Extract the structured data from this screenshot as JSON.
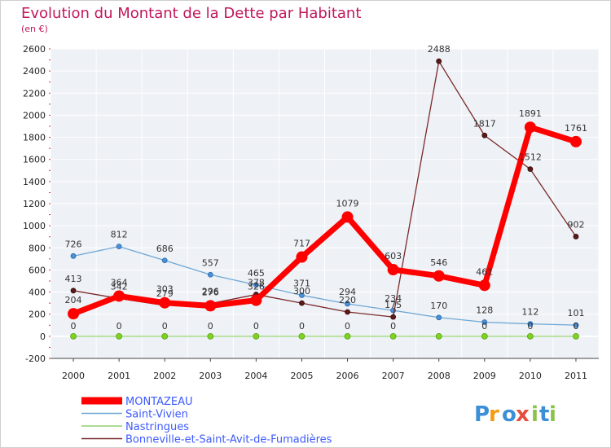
{
  "chart_data": {
    "type": "line",
    "title": "Evolution du Montant de la Dette par Habitant",
    "subtitle": "(en €)",
    "x": [
      "2000",
      "2001",
      "2002",
      "2003",
      "2004",
      "2005",
      "2006",
      "2007",
      "2008",
      "2009",
      "2010",
      "2011"
    ],
    "ylim": [
      -200,
      2600
    ],
    "yticks": [
      "-200",
      "0",
      "200",
      "400",
      "600",
      "800",
      "1000",
      "1200",
      "1400",
      "1600",
      "1800",
      "2000",
      "2200",
      "2400",
      "2600"
    ],
    "grid": true,
    "legend_position": "bottom",
    "series": [
      {
        "name": "MONTAZEAU",
        "color": "#ff0000",
        "values": [
          204,
          364,
          303,
          276,
          326,
          717,
          1079,
          603,
          546,
          461,
          1891,
          1761
        ],
        "labels": [
          "204",
          "364",
          "303",
          "276",
          "326",
          "717",
          "1079",
          "603",
          "546",
          "461",
          "1891",
          "1761"
        ]
      },
      {
        "name": "Saint-Vivien",
        "color": "#6fa8d6",
        "values": [
          726,
          812,
          686,
          557,
          465,
          371,
          294,
          234,
          170,
          128,
          112,
          101
        ],
        "labels": [
          "726",
          "812",
          "686",
          "557",
          "465",
          "371",
          "294",
          "234",
          "170",
          "128",
          "112",
          "101"
        ]
      },
      {
        "name": "Nastringues",
        "color": "#8fd16a",
        "values": [
          0,
          0,
          0,
          0,
          0,
          0,
          0,
          0,
          0,
          0,
          0,
          0
        ],
        "labels": [
          "0",
          "0",
          "0",
          "0",
          "0",
          "0",
          "0",
          "0",
          "",
          "0",
          "0",
          "0"
        ]
      },
      {
        "name": "Bonneville-et-Saint-Avit-de-Fumadières",
        "color": "#7a2a2a",
        "values": [
          413,
          342,
          279,
          296,
          378,
          300,
          220,
          175,
          2488,
          1817,
          1512,
          902
        ],
        "labels": [
          "413",
          "342",
          "279",
          "296",
          "378",
          "300",
          "220",
          "175",
          "2488",
          "1817",
          "1512",
          "902"
        ]
      }
    ]
  },
  "logo": {
    "letters": [
      "P",
      "r",
      "o",
      "x",
      "i",
      "t",
      "i"
    ],
    "colors": [
      "#3b8fd6",
      "#f39c12",
      "#3b8fd6",
      "#e74c3c",
      "#8bc34a",
      "#3b8fd6",
      "#8bc34a"
    ]
  }
}
